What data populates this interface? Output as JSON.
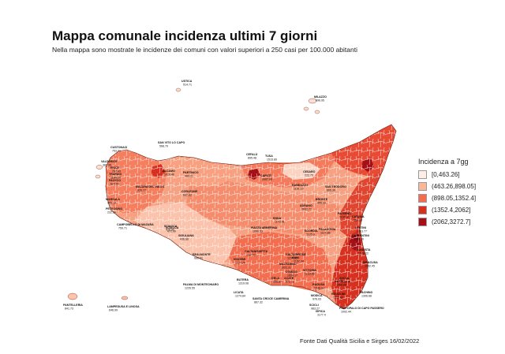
{
  "title": "Mappa comunale incidenza ultimi 7 giorni",
  "subtitle": "Nella mappa sono mostrate le incidenze dei comuni con valori superiori a 250 casi per 100.000 abitanti",
  "legend": {
    "title": "Incidenza a 7gg",
    "classes": [
      {
        "label": "[0,463.26]",
        "color": "#fdeee6"
      },
      {
        "label": "(463.26,898.05]",
        "color": "#fbb79a"
      },
      {
        "label": "(898.05,1352.4]",
        "color": "#f36e4f"
      },
      {
        "label": "(1352.4,2062]",
        "color": "#d7301f"
      },
      {
        "label": "(2062,3272.7]",
        "color": "#a50f15"
      }
    ]
  },
  "source": "Fonte Dati Qualità Sicilia e Sirges 16/02/2022",
  "labels": [
    {
      "name": "USTICA",
      "value": "514.71"
    },
    {
      "name": "MILAZZO",
      "value": "696.95"
    },
    {
      "name": "SAN VITO LO CAPO",
      "value": "568.79"
    },
    {
      "name": "CUSTONACI",
      "value": "753.21"
    },
    {
      "name": "VALDERICE",
      "value": "382.95"
    },
    {
      "name": "ERICE",
      "value": "797.43"
    },
    {
      "name": "PACECO",
      "value": "623.82"
    },
    {
      "name": "TRAPANI",
      "value": "1196.34"
    },
    {
      "name": "MARSALA",
      "value": "965.19"
    },
    {
      "name": "PETROSINO",
      "value": "232.59"
    },
    {
      "name": "MAZARA DEL VALLO",
      "value": "826.77"
    },
    {
      "name": "CAMPOBELLO DI MAZARA",
      "value": "759.71"
    },
    {
      "name": "ALCAMO",
      "value": "1010.48"
    },
    {
      "name": "PARTINICO",
      "value": "903.01"
    },
    {
      "name": "CORLEONE",
      "value": "682.62"
    },
    {
      "name": "CEFALÙ",
      "value": "895.48"
    },
    {
      "name": "TUSA",
      "value": "1515.89"
    },
    {
      "name": "CAPIZZI",
      "value": "2887.88"
    },
    {
      "name": "CESARÒ",
      "value": "222.75"
    },
    {
      "name": "RANDAZZO",
      "value": "1191.10"
    },
    {
      "name": "SAN TEODORO",
      "value": "665.36"
    },
    {
      "name": "BRONTE",
      "value": "866.59"
    },
    {
      "name": "ADRANO",
      "value": "2032.77"
    },
    {
      "name": "PATERNÒ",
      "value": "1196.47"
    },
    {
      "name": "CATANIA",
      "value": "980.38"
    },
    {
      "name": "LENTINI",
      "value": "1203.77"
    },
    {
      "name": "CARLENTINI",
      "value": "1039.30"
    },
    {
      "name": "AUGUSTA",
      "value": "1370.22"
    },
    {
      "name": "SIRACUSA",
      "value": "1462.45"
    },
    {
      "name": "NOTO",
      "value": "1408.88"
    },
    {
      "name": "AVOLA",
      "value": "1196.91"
    },
    {
      "name": "ROSOLINI",
      "value": "1211.43"
    },
    {
      "name": "PACHINO",
      "value": "1306.68"
    },
    {
      "name": "PORTOPALO DI CAPO PASSERO",
      "value": "1092.44"
    },
    {
      "name": "ISPICA",
      "value": "1177.4"
    },
    {
      "name": "MODICA",
      "value": "976.03"
    },
    {
      "name": "RAGUSA",
      "value": "1036.33"
    },
    {
      "name": "SCICLI",
      "value": "983.27"
    },
    {
      "name": "VITTORIA",
      "value": "1163.59"
    },
    {
      "name": "ACATE",
      "value": "870.11"
    },
    {
      "name": "SANTA CROCE CAMERINA",
      "value": "867.32"
    },
    {
      "name": "COMISO",
      "value": "1054.17"
    },
    {
      "name": "GELA",
      "value": "888.87"
    },
    {
      "name": "NISCEMI",
      "value": "1227.70"
    },
    {
      "name": "BUTERA",
      "value": "1319.08"
    },
    {
      "name": "LICATA",
      "value": "1274.84"
    },
    {
      "name": "PALMA DI MONTECHIARO",
      "value": "1226.55"
    },
    {
      "name": "REALMONTE",
      "value": "686.01"
    },
    {
      "name": "SCIACCA",
      "value": "472.90"
    },
    {
      "name": "SCIACCA",
      "value": "476.99"
    },
    {
      "name": "SIGULIANA",
      "value": "436.66"
    },
    {
      "name": "CALTAGIRONE",
      "value": "1159.02"
    },
    {
      "name": "PIAZZA ARMERINA",
      "value": "1090.53"
    },
    {
      "name": "ENNA",
      "value": "1173.41"
    },
    {
      "name": "SCORDIA",
      "value": "1125.0"
    },
    {
      "name": "PALAGONIA",
      "value": "1114.88"
    },
    {
      "name": "CALTANISSETTA",
      "value": "1007.01"
    },
    {
      "name": "MAZZARINO",
      "value": "1022.31"
    },
    {
      "name": "RIESI",
      "value": "1157.84"
    },
    {
      "name": "PANTELLERIA",
      "value": "841.73"
    },
    {
      "name": "LAMPEDUSA E LINOSA",
      "value": "646.99"
    }
  ]
}
